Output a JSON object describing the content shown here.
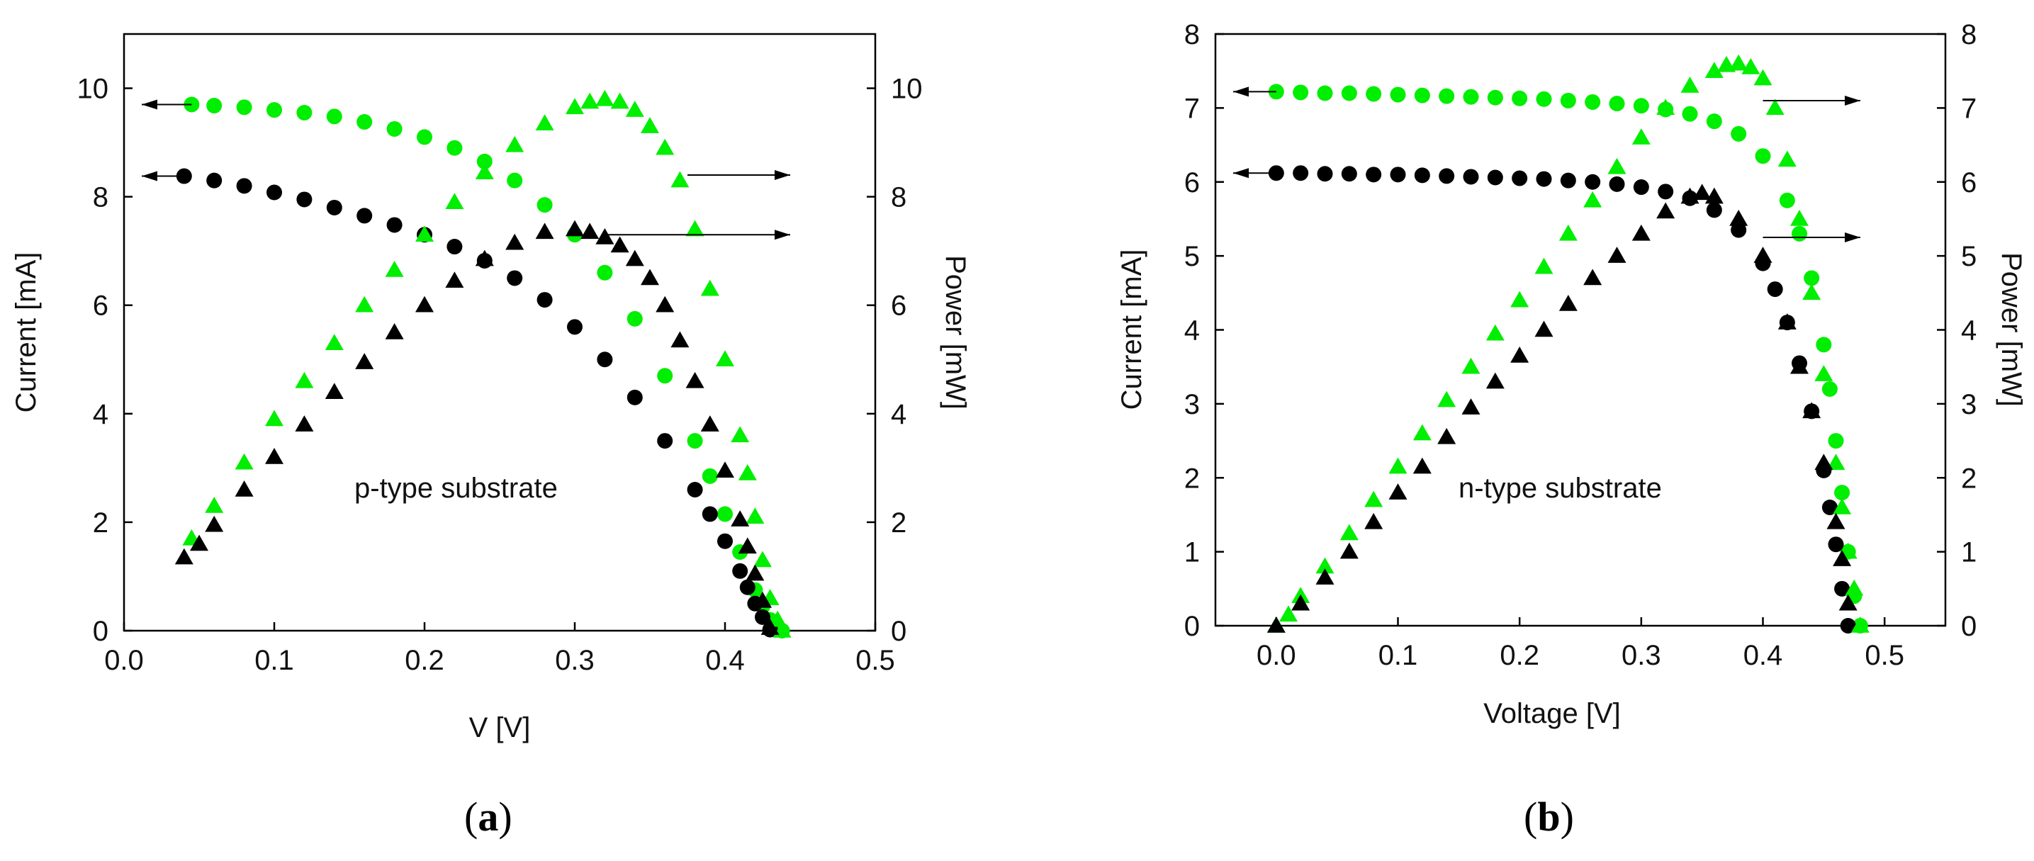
{
  "chart_data": [
    {
      "type": "scatter",
      "panel_label": "a",
      "annotation": "p-type substrate",
      "xlabel": "V [V]",
      "ylabel_left": "Current [mA]",
      "ylabel_right": "Power [mW]",
      "xlim": [
        0.0,
        0.5
      ],
      "ylim_left": [
        0,
        11
      ],
      "ylim_right": [
        0,
        11
      ],
      "x_ticks": [
        "0.0",
        "0.1",
        "0.2",
        "0.3",
        "0.4",
        "0.5"
      ],
      "y_ticks_left": [
        "0",
        "2",
        "4",
        "6",
        "8",
        "10"
      ],
      "y_ticks_right": [
        "0",
        "2",
        "4",
        "6",
        "8",
        "10"
      ],
      "colors": {
        "green": "#00ee00",
        "black": "#000000"
      },
      "series": [
        {
          "name": "Current (green)",
          "axis": "left",
          "marker": "circle",
          "color": "#00ee00",
          "x": [
            0.045,
            0.06,
            0.08,
            0.1,
            0.12,
            0.14,
            0.16,
            0.18,
            0.2,
            0.22,
            0.24,
            0.26,
            0.28,
            0.3,
            0.32,
            0.34,
            0.36,
            0.38,
            0.39,
            0.4,
            0.41,
            0.42,
            0.425,
            0.43,
            0.435,
            0.438
          ],
          "y": [
            9.7,
            9.68,
            9.65,
            9.6,
            9.55,
            9.48,
            9.38,
            9.25,
            9.1,
            8.9,
            8.65,
            8.3,
            7.85,
            7.3,
            6.6,
            5.75,
            4.7,
            3.5,
            2.85,
            2.15,
            1.45,
            0.75,
            0.45,
            0.2,
            0.05,
            0
          ]
        },
        {
          "name": "Current (black)",
          "axis": "left",
          "marker": "circle",
          "color": "#000000",
          "x": [
            0.04,
            0.06,
            0.08,
            0.1,
            0.12,
            0.14,
            0.16,
            0.18,
            0.2,
            0.22,
            0.24,
            0.26,
            0.28,
            0.3,
            0.32,
            0.34,
            0.36,
            0.38,
            0.39,
            0.4,
            0.41,
            0.415,
            0.42,
            0.425,
            0.43
          ],
          "y": [
            8.38,
            8.3,
            8.2,
            8.08,
            7.95,
            7.8,
            7.65,
            7.48,
            7.3,
            7.08,
            6.82,
            6.5,
            6.1,
            5.6,
            5.0,
            4.3,
            3.5,
            2.6,
            2.15,
            1.65,
            1.1,
            0.8,
            0.5,
            0.25,
            0.02
          ]
        },
        {
          "name": "Power (green)",
          "axis": "right",
          "marker": "triangle",
          "color": "#00ee00",
          "x": [
            0.045,
            0.06,
            0.08,
            0.1,
            0.12,
            0.14,
            0.16,
            0.18,
            0.2,
            0.22,
            0.24,
            0.26,
            0.28,
            0.3,
            0.31,
            0.32,
            0.33,
            0.34,
            0.35,
            0.36,
            0.37,
            0.38,
            0.39,
            0.4,
            0.41,
            0.415,
            0.42,
            0.425,
            0.43,
            0.435,
            0.438
          ],
          "y": [
            1.7,
            2.3,
            3.1,
            3.9,
            4.6,
            5.3,
            6.0,
            6.65,
            7.3,
            7.9,
            8.45,
            8.95,
            9.35,
            9.65,
            9.75,
            9.8,
            9.75,
            9.6,
            9.3,
            8.9,
            8.3,
            7.4,
            6.3,
            5.0,
            3.6,
            2.9,
            2.1,
            1.3,
            0.6,
            0.2,
            0
          ]
        },
        {
          "name": "Power (black)",
          "axis": "right",
          "marker": "triangle",
          "color": "#000000",
          "x": [
            0.04,
            0.05,
            0.06,
            0.08,
            0.1,
            0.12,
            0.14,
            0.16,
            0.18,
            0.2,
            0.22,
            0.24,
            0.26,
            0.28,
            0.3,
            0.31,
            0.32,
            0.33,
            0.34,
            0.35,
            0.36,
            0.37,
            0.38,
            0.39,
            0.4,
            0.41,
            0.415,
            0.42,
            0.425,
            0.43
          ],
          "y": [
            1.35,
            1.6,
            1.95,
            2.6,
            3.2,
            3.8,
            4.4,
            4.95,
            5.5,
            6.0,
            6.45,
            6.85,
            7.15,
            7.35,
            7.4,
            7.35,
            7.25,
            7.1,
            6.85,
            6.5,
            6.0,
            5.35,
            4.6,
            3.8,
            2.95,
            2.05,
            1.55,
            1.05,
            0.55,
            0.05
          ]
        }
      ],
      "arrows": [
        {
          "target": "left",
          "x": 0.045,
          "y": 9.7
        },
        {
          "target": "left",
          "x": 0.04,
          "y": 8.38
        },
        {
          "target": "right",
          "x": 0.375,
          "y": 8.4
        },
        {
          "target": "right",
          "x": 0.32,
          "y": 7.3
        }
      ]
    },
    {
      "type": "scatter",
      "panel_label": "b",
      "annotation": "n-type substrate",
      "xlabel": "Voltage [V]",
      "ylabel_left": "Current [mA]",
      "ylabel_right": "Power [mW]",
      "xlim": [
        -0.05,
        0.55
      ],
      "ylim_left": [
        0,
        8
      ],
      "ylim_right": [
        0,
        8
      ],
      "x_ticks": [
        "0.0",
        "0.1",
        "0.2",
        "0.3",
        "0.4",
        "0.5"
      ],
      "y_ticks_left": [
        "0",
        "1",
        "2",
        "3",
        "4",
        "5",
        "6",
        "7",
        "8"
      ],
      "y_ticks_right": [
        "0",
        "1",
        "2",
        "3",
        "4",
        "5",
        "6",
        "7",
        "8"
      ],
      "colors": {
        "green": "#00ee00",
        "black": "#000000"
      },
      "series": [
        {
          "name": "Current (green)",
          "axis": "left",
          "marker": "circle",
          "color": "#00ee00",
          "x": [
            0.0,
            0.02,
            0.04,
            0.06,
            0.08,
            0.1,
            0.12,
            0.14,
            0.16,
            0.18,
            0.2,
            0.22,
            0.24,
            0.26,
            0.28,
            0.3,
            0.32,
            0.34,
            0.36,
            0.38,
            0.4,
            0.42,
            0.43,
            0.44,
            0.45,
            0.455,
            0.46,
            0.465,
            0.47,
            0.475,
            0.48
          ],
          "y": [
            7.22,
            7.21,
            7.2,
            7.2,
            7.19,
            7.18,
            7.17,
            7.16,
            7.15,
            7.14,
            7.13,
            7.12,
            7.1,
            7.08,
            7.06,
            7.03,
            6.98,
            6.92,
            6.82,
            6.65,
            6.35,
            5.75,
            5.3,
            4.7,
            3.8,
            3.2,
            2.5,
            1.8,
            1.0,
            0.4,
            0
          ]
        },
        {
          "name": "Current (black)",
          "axis": "left",
          "marker": "circle",
          "color": "#000000",
          "x": [
            0.0,
            0.02,
            0.04,
            0.06,
            0.08,
            0.1,
            0.12,
            0.14,
            0.16,
            0.18,
            0.2,
            0.22,
            0.24,
            0.26,
            0.28,
            0.3,
            0.32,
            0.34,
            0.36,
            0.38,
            0.4,
            0.41,
            0.42,
            0.43,
            0.44,
            0.45,
            0.455,
            0.46,
            0.465,
            0.47
          ],
          "y": [
            6.12,
            6.12,
            6.11,
            6.11,
            6.1,
            6.1,
            6.09,
            6.08,
            6.07,
            6.06,
            6.05,
            6.04,
            6.02,
            6.0,
            5.97,
            5.93,
            5.87,
            5.78,
            5.62,
            5.35,
            4.9,
            4.55,
            4.1,
            3.55,
            2.9,
            2.1,
            1.6,
            1.1,
            0.5,
            0
          ]
        },
        {
          "name": "Power (green)",
          "axis": "right",
          "marker": "triangle",
          "color": "#00ee00",
          "x": [
            0.0,
            0.01,
            0.02,
            0.04,
            0.06,
            0.08,
            0.1,
            0.12,
            0.14,
            0.16,
            0.18,
            0.2,
            0.22,
            0.24,
            0.26,
            0.28,
            0.3,
            0.32,
            0.34,
            0.36,
            0.37,
            0.38,
            0.39,
            0.4,
            0.41,
            0.42,
            0.43,
            0.44,
            0.45,
            0.46,
            0.465,
            0.47,
            0.475,
            0.48
          ],
          "y": [
            0.0,
            0.15,
            0.4,
            0.8,
            1.25,
            1.7,
            2.15,
            2.6,
            3.05,
            3.5,
            3.95,
            4.4,
            4.85,
            5.3,
            5.75,
            6.2,
            6.6,
            7.0,
            7.3,
            7.5,
            7.58,
            7.6,
            7.55,
            7.4,
            7.0,
            6.3,
            5.5,
            4.5,
            3.4,
            2.2,
            1.6,
            1.0,
            0.5,
            0
          ]
        },
        {
          "name": "Power (black)",
          "axis": "right",
          "marker": "triangle",
          "color": "#000000",
          "x": [
            0.0,
            0.02,
            0.04,
            0.06,
            0.08,
            0.1,
            0.12,
            0.14,
            0.16,
            0.18,
            0.2,
            0.22,
            0.24,
            0.26,
            0.28,
            0.3,
            0.32,
            0.34,
            0.35,
            0.36,
            0.38,
            0.4,
            0.42,
            0.43,
            0.44,
            0.45,
            0.46,
            0.465,
            0.47
          ],
          "y": [
            0.0,
            0.3,
            0.65,
            1.0,
            1.4,
            1.8,
            2.15,
            2.55,
            2.95,
            3.3,
            3.65,
            4.0,
            4.35,
            4.7,
            5.0,
            5.3,
            5.6,
            5.8,
            5.85,
            5.8,
            5.5,
            5.0,
            4.1,
            3.5,
            2.9,
            2.2,
            1.4,
            0.9,
            0.3
          ]
        }
      ],
      "arrows": [
        {
          "target": "left",
          "x": 0.0,
          "y": 7.22
        },
        {
          "target": "left",
          "x": 0.0,
          "y": 6.12
        },
        {
          "target": "right",
          "x": 0.4,
          "y": 7.1
        },
        {
          "target": "right",
          "x": 0.4,
          "y": 5.25
        }
      ]
    }
  ]
}
